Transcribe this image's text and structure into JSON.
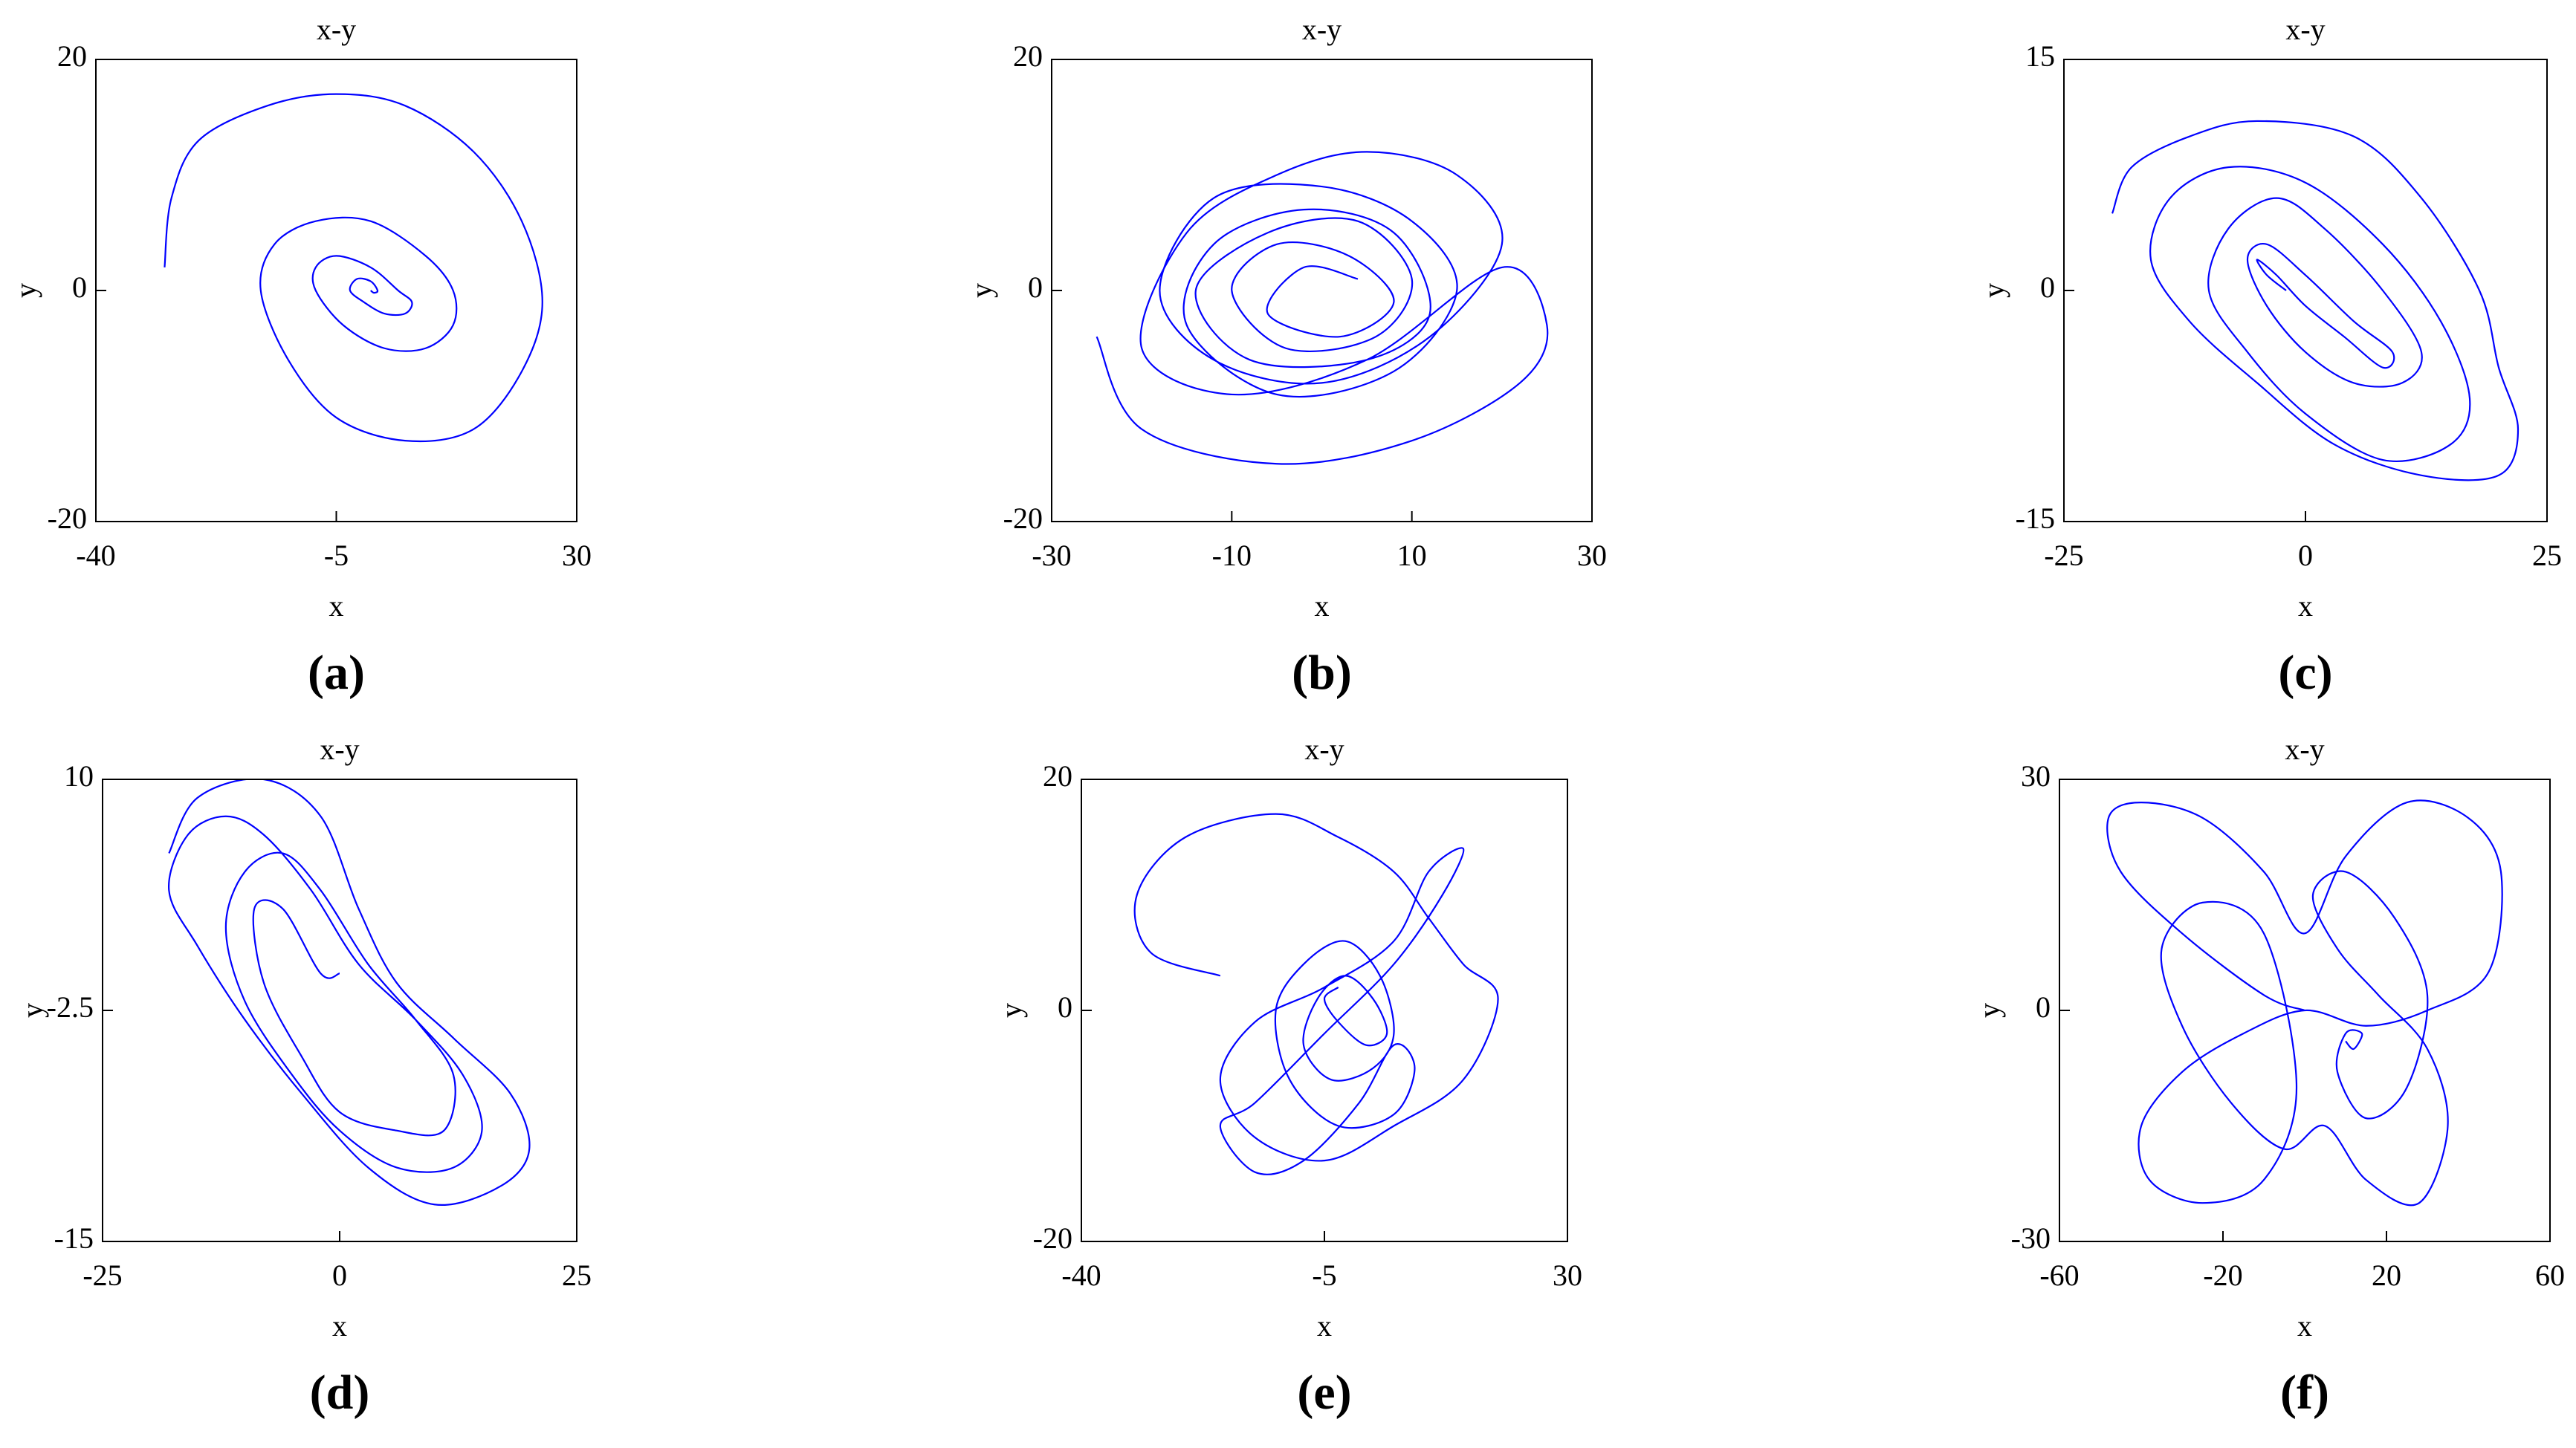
{
  "chart_data": [
    {
      "type": "line",
      "title": "x-y",
      "label": "(a)",
      "x_label": "x",
      "y_label": "y",
      "color": "#0000ff",
      "xlim": [
        -40,
        30
      ],
      "xticks": [
        -40,
        -5,
        30
      ],
      "ylim": [
        -20,
        20
      ],
      "yticks": [
        -20,
        0,
        20
      ],
      "x": [
        -30,
        -29,
        -25,
        -15,
        -5,
        5,
        15,
        22,
        25,
        22,
        15,
        5,
        -5,
        -12,
        -16,
        -14,
        -8,
        0,
        8,
        12,
        12,
        8,
        2,
        -4,
        -8,
        -8,
        -5,
        0,
        4,
        6,
        5,
        2,
        -1,
        -3,
        -2,
        0,
        1,
        0.5,
        0
      ],
      "values": [
        2,
        8,
        13,
        16,
        17,
        16,
        12,
        6,
        -1,
        -7,
        -12,
        -13,
        -11,
        -6,
        0,
        4,
        6,
        6,
        3,
        0,
        -3,
        -5,
        -5,
        -3,
        0,
        2,
        3,
        2,
        0,
        -1,
        -2,
        -2,
        -1,
        0,
        1,
        0.8,
        0,
        -0.2,
        0
      ]
    },
    {
      "type": "line",
      "title": "x-y",
      "label": "(b)",
      "x_label": "x",
      "y_label": "y",
      "color": "#0000ff",
      "xlim": [
        -30,
        30
      ],
      "xticks": [
        -30,
        -10,
        10,
        30
      ],
      "ylim": [
        -20,
        20
      ],
      "yticks": [
        -20,
        0,
        20
      ],
      "x": [
        -25,
        -20,
        -5,
        10,
        22,
        25,
        20,
        5,
        -10,
        -20,
        -15,
        -5,
        5,
        15,
        20,
        12,
        0,
        -12,
        -18,
        -12,
        0,
        10,
        15,
        8,
        -5,
        -15,
        -12,
        -2,
        8,
        12,
        5,
        -8,
        -14,
        -6,
        4,
        10,
        6,
        -4,
        -10,
        -5,
        3,
        8,
        2,
        -6,
        -2,
        4
      ],
      "values": [
        -4,
        -12,
        -15,
        -13,
        -8,
        -3,
        2,
        -6,
        -9,
        -5,
        5,
        10,
        12,
        10,
        4,
        -4,
        -8,
        -6,
        0,
        8,
        9,
        6,
        0,
        -7,
        -9,
        -3,
        4,
        7,
        5,
        -2,
        -6,
        -6,
        0,
        5,
        6,
        1,
        -4,
        -5,
        0,
        4,
        3,
        -1,
        -4,
        -2,
        2,
        1
      ]
    },
    {
      "type": "line",
      "title": "x-y",
      "label": "(c)",
      "x_label": "x",
      "y_label": "y",
      "color": "#0000ff",
      "xlim": [
        -25,
        25
      ],
      "xticks": [
        -25,
        0,
        25
      ],
      "ylim": [
        -15,
        15
      ],
      "yticks": [
        -15,
        0,
        15
      ],
      "x": [
        -20,
        -18,
        -12,
        -5,
        5,
        12,
        18,
        20,
        22,
        20,
        12,
        3,
        -5,
        -12,
        -16,
        -14,
        -8,
        0,
        8,
        14,
        17,
        15,
        8,
        0,
        -6,
        -10,
        -8,
        -3,
        2,
        8,
        12,
        10,
        5,
        0,
        -4,
        -6,
        -4,
        0,
        5,
        9,
        8,
        4,
        0,
        -3,
        -5,
        -4,
        -2
      ],
      "values": [
        5,
        8,
        10,
        11,
        10,
        6,
        0,
        -5,
        -9,
        -12,
        -12,
        -10,
        -6,
        -2,
        2,
        6,
        8,
        7,
        3,
        -2,
        -7,
        -10,
        -11,
        -8,
        -4,
        0,
        4,
        6,
        4,
        0,
        -4,
        -6,
        -6,
        -4,
        -1,
        2,
        3,
        1,
        -2,
        -4,
        -5,
        -3,
        -1,
        1,
        2,
        1,
        0
      ]
    },
    {
      "type": "line",
      "title": "x-y",
      "label": "(d)",
      "x_label": "x",
      "y_label": "y",
      "color": "#0000ff",
      "xlim": [
        -25,
        25
      ],
      "xticks": [
        -25,
        0,
        25
      ],
      "ylim": [
        -15,
        10
      ],
      "yticks": [
        -15,
        -2.5,
        10
      ],
      "x": [
        -18,
        -15,
        -8,
        -2,
        2,
        6,
        12,
        18,
        20,
        17,
        10,
        3,
        -4,
        -10,
        -15,
        -18,
        -16,
        -12,
        -8,
        -3,
        2,
        8,
        13,
        15,
        12,
        6,
        0,
        -5,
        -10,
        -12,
        -10,
        -6,
        -2,
        3,
        8,
        12,
        11,
        6,
        0,
        -4,
        -8,
        -9,
        -6,
        -2,
        0
      ],
      "values": [
        6,
        9,
        10,
        8,
        3,
        -1,
        -4,
        -7,
        -10,
        -12,
        -13,
        -11,
        -7,
        -3,
        1,
        4,
        7,
        8,
        7,
        4,
        0,
        -3,
        -6,
        -9,
        -11,
        -11,
        -9,
        -6,
        -2,
        2,
        5,
        6,
        4,
        0,
        -3,
        -6,
        -9,
        -9,
        -8,
        -5,
        -1,
        3,
        3,
        -0.5,
        -0.5
      ]
    },
    {
      "type": "line",
      "title": "x-y",
      "label": "(e)",
      "x_label": "x",
      "y_label": "y",
      "color": "#0000ff",
      "xlim": [
        -40,
        30
      ],
      "xticks": [
        -40,
        -5,
        30
      ],
      "ylim": [
        -20,
        20
      ],
      "yticks": [
        -20,
        0,
        20
      ],
      "x": [
        -20,
        -30,
        -32,
        -25,
        -12,
        -3,
        5,
        10,
        15,
        20,
        15,
        5,
        -5,
        -15,
        -20,
        -15,
        -5,
        5,
        10,
        15,
        12,
        5,
        -5,
        -15,
        -20,
        -15,
        -8,
        0,
        5,
        8,
        5,
        -3,
        -10,
        -12,
        -8,
        -2,
        3,
        5,
        2,
        -4,
        -8,
        -6,
        -2,
        2,
        4,
        1,
        -3,
        -5,
        -3
      ],
      "values": [
        3,
        5,
        10,
        15,
        17,
        15,
        12,
        8,
        4,
        1,
        -6,
        -10,
        -13,
        -11,
        -6,
        -1,
        2,
        6,
        12,
        14,
        10,
        4,
        -2,
        -8,
        -10,
        -14,
        -13,
        -8,
        -3,
        -5,
        -9,
        -10,
        -6,
        0,
        4,
        6,
        3,
        -2,
        -5,
        -6,
        -3,
        1,
        3,
        1,
        -2,
        -3,
        -1,
        1,
        2
      ]
    },
    {
      "type": "line",
      "title": "x-y",
      "label": "(f)",
      "x_label": "x",
      "y_label": "y",
      "color": "#0000ff",
      "xlim": [
        -60,
        60
      ],
      "xticks": [
        -60,
        -20,
        20,
        60
      ],
      "ylim": [
        -30,
        30
      ],
      "yticks": [
        -30,
        0,
        30
      ],
      "x": [
        0,
        -10,
        -30,
        -45,
        -48,
        -40,
        -25,
        -10,
        0,
        10,
        25,
        40,
        48,
        45,
        30,
        15,
        0,
        -15,
        -30,
        -40,
        -38,
        -25,
        -10,
        -2,
        -10,
        -25,
        -35,
        -30,
        -18,
        -5,
        5,
        15,
        28,
        35,
        30,
        18,
        8,
        2,
        10,
        22,
        30,
        25,
        15,
        8,
        10,
        14,
        12,
        10
      ],
      "values": [
        0,
        2,
        10,
        18,
        25,
        27,
        25,
        18,
        10,
        20,
        27,
        25,
        18,
        5,
        0,
        -2,
        0,
        -3,
        -8,
        -15,
        -22,
        -25,
        -22,
        -10,
        10,
        14,
        8,
        -2,
        -12,
        -18,
        -15,
        -22,
        -25,
        -15,
        -5,
        2,
        8,
        15,
        18,
        12,
        2,
        -10,
        -14,
        -8,
        -3,
        -3,
        -5,
        -4
      ]
    }
  ]
}
